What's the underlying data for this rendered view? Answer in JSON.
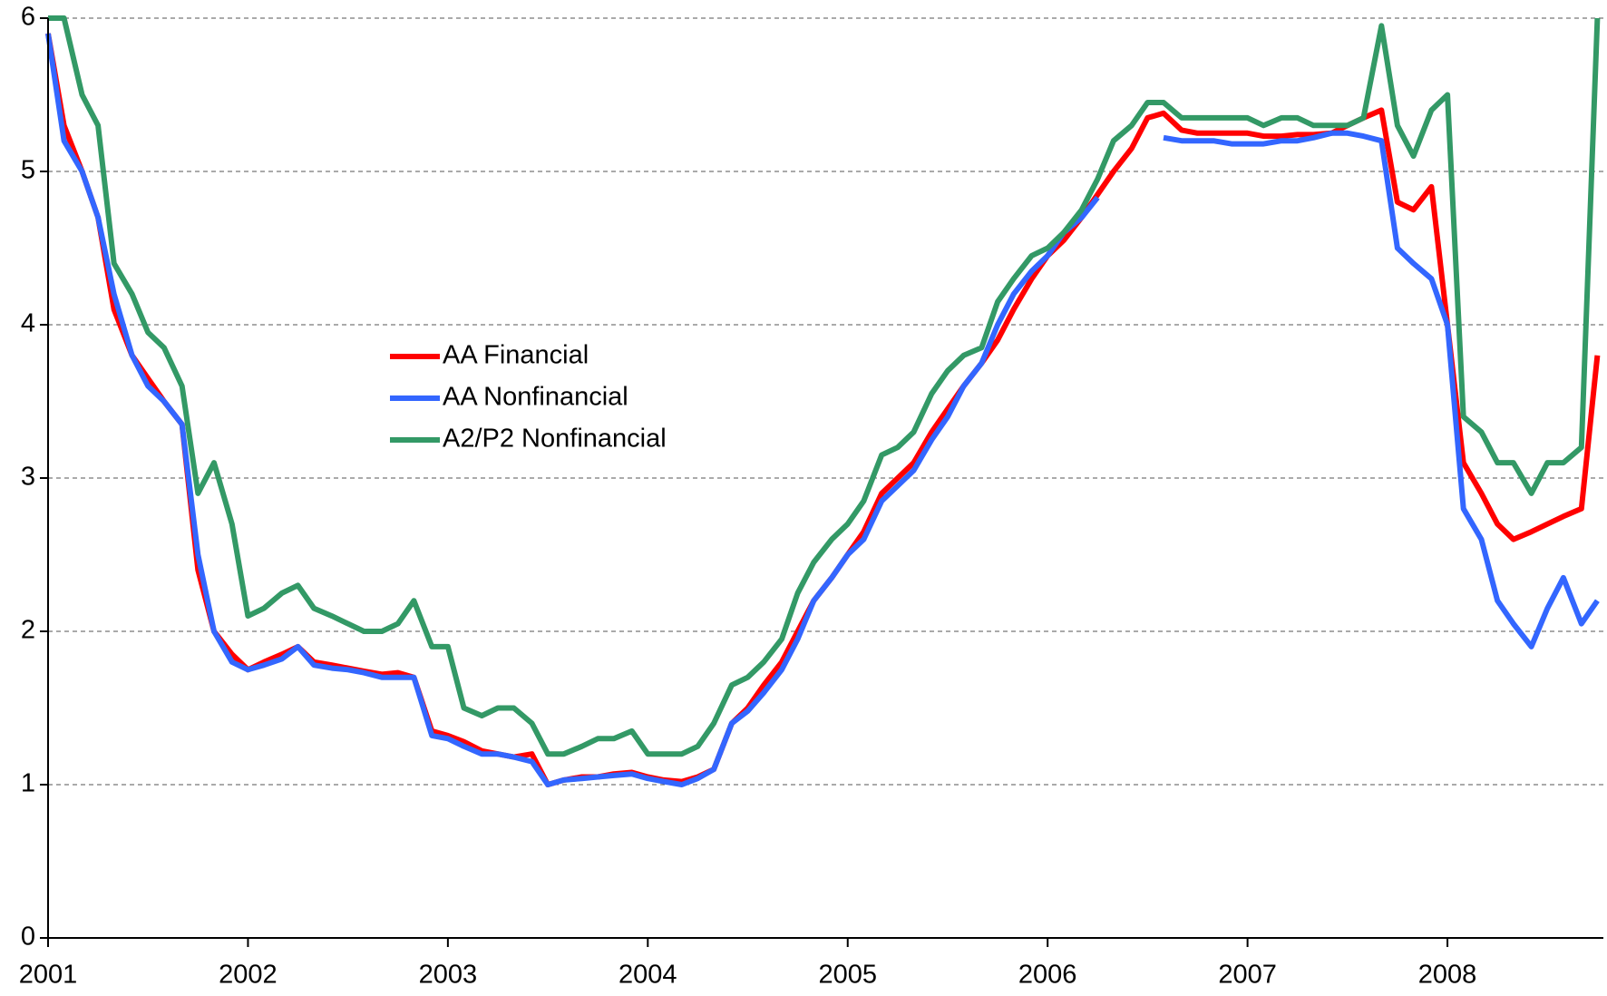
{
  "chart_data": {
    "type": "line",
    "x": [
      2001.0,
      2001.08,
      2001.17,
      2001.25,
      2001.33,
      2001.42,
      2001.5,
      2001.58,
      2001.67,
      2001.75,
      2001.83,
      2001.92,
      2002.0,
      2002.08,
      2002.17,
      2002.25,
      2002.33,
      2002.42,
      2002.5,
      2002.58,
      2002.67,
      2002.75,
      2002.83,
      2002.92,
      2003.0,
      2003.08,
      2003.17,
      2003.25,
      2003.33,
      2003.42,
      2003.5,
      2003.58,
      2003.67,
      2003.75,
      2003.83,
      2003.92,
      2004.0,
      2004.08,
      2004.17,
      2004.25,
      2004.33,
      2004.42,
      2004.5,
      2004.58,
      2004.67,
      2004.75,
      2004.83,
      2004.92,
      2005.0,
      2005.08,
      2005.17,
      2005.25,
      2005.33,
      2005.42,
      2005.5,
      2005.58,
      2005.67,
      2005.75,
      2005.83,
      2005.92,
      2006.0,
      2006.08,
      2006.17,
      2006.25,
      2006.33,
      2006.42,
      2006.5,
      2006.58,
      2006.67,
      2006.75,
      2006.83,
      2006.92,
      2007.0,
      2007.08,
      2007.17,
      2007.25,
      2007.33,
      2007.42,
      2007.5,
      2007.58,
      2007.67,
      2007.75,
      2007.83,
      2007.92,
      2008.0,
      2008.08,
      2008.17,
      2008.25,
      2008.33,
      2008.42,
      2008.5,
      2008.58,
      2008.67,
      2008.75
    ],
    "series": [
      {
        "name": "AA Financial",
        "color": "#ff0000",
        "values": [
          5.9,
          5.3,
          5.0,
          4.7,
          4.1,
          3.8,
          3.65,
          3.5,
          3.35,
          2.4,
          2.0,
          1.85,
          1.75,
          1.8,
          1.85,
          1.9,
          1.8,
          1.78,
          1.76,
          1.74,
          1.72,
          1.73,
          1.7,
          1.35,
          1.32,
          1.28,
          1.22,
          1.2,
          1.18,
          1.2,
          1.0,
          1.03,
          1.05,
          1.05,
          1.07,
          1.08,
          1.05,
          1.03,
          1.02,
          1.05,
          1.1,
          1.4,
          1.5,
          1.65,
          1.8,
          2.0,
          2.2,
          2.35,
          2.5,
          2.65,
          2.9,
          3.0,
          3.1,
          3.3,
          3.45,
          3.6,
          3.75,
          3.9,
          4.1,
          4.3,
          4.45,
          4.55,
          4.7,
          4.85,
          5.0,
          5.15,
          5.35,
          5.38,
          5.27,
          5.25,
          5.25,
          5.25,
          5.25,
          5.23,
          5.23,
          5.24,
          5.24,
          5.25,
          5.3,
          5.35,
          5.4,
          4.8,
          4.75,
          4.9,
          4.0,
          3.1,
          2.9,
          2.7,
          2.6,
          2.65,
          2.7,
          2.75,
          2.8,
          3.8
        ]
      },
      {
        "name": "AA Nonfinancial",
        "color": "#3366ff",
        "values": [
          5.9,
          5.2,
          5.0,
          4.7,
          4.2,
          3.8,
          3.6,
          3.5,
          3.35,
          2.5,
          2.0,
          1.8,
          1.75,
          1.78,
          1.82,
          1.9,
          1.78,
          1.76,
          1.75,
          1.73,
          1.7,
          1.7,
          1.7,
          1.32,
          1.3,
          1.25,
          1.2,
          1.2,
          1.18,
          1.15,
          1.0,
          1.03,
          1.04,
          1.05,
          1.06,
          1.07,
          1.04,
          1.02,
          1.0,
          1.04,
          1.1,
          1.4,
          1.48,
          1.6,
          1.75,
          1.95,
          2.2,
          2.35,
          2.5,
          2.6,
          2.85,
          2.95,
          3.05,
          3.25,
          3.4,
          3.6,
          3.75,
          4.0,
          4.2,
          4.35,
          4.45,
          4.6,
          4.7,
          4.83,
          null,
          null,
          null,
          5.22,
          5.2,
          5.2,
          5.2,
          5.18,
          5.18,
          5.18,
          5.2,
          5.2,
          5.22,
          5.25,
          5.25,
          5.23,
          5.2,
          4.5,
          4.4,
          4.3,
          4.0,
          2.8,
          2.6,
          2.2,
          2.05,
          1.9,
          2.15,
          2.35,
          2.05,
          2.2
        ]
      },
      {
        "name": "A2/P2 Nonfinancial",
        "color": "#339966",
        "values": [
          6.0,
          6.0,
          5.5,
          5.3,
          4.4,
          4.2,
          3.95,
          3.85,
          3.6,
          2.9,
          3.1,
          2.7,
          2.1,
          2.15,
          2.25,
          2.3,
          2.15,
          2.1,
          2.05,
          2.0,
          2.0,
          2.05,
          2.2,
          1.9,
          1.9,
          1.5,
          1.45,
          1.5,
          1.5,
          1.4,
          1.2,
          1.2,
          1.25,
          1.3,
          1.3,
          1.35,
          1.2,
          1.2,
          1.2,
          1.25,
          1.4,
          1.65,
          1.7,
          1.8,
          1.95,
          2.25,
          2.45,
          2.6,
          2.7,
          2.85,
          3.15,
          3.2,
          3.3,
          3.55,
          3.7,
          3.8,
          3.85,
          4.15,
          4.3,
          4.45,
          4.5,
          4.6,
          4.75,
          4.95,
          5.2,
          5.3,
          5.45,
          5.45,
          5.35,
          5.35,
          5.35,
          5.35,
          5.35,
          5.3,
          5.35,
          5.35,
          5.3,
          5.3,
          5.3,
          5.35,
          5.95,
          5.3,
          5.1,
          5.4,
          5.5,
          3.4,
          3.3,
          3.1,
          3.1,
          2.9,
          3.1,
          3.1,
          3.2,
          6.0
        ]
      }
    ],
    "xlim": [
      2001,
      2008.78
    ],
    "xticks": [
      2001,
      2002,
      2003,
      2004,
      2005,
      2006,
      2007,
      2008
    ],
    "ylim": [
      0,
      6
    ],
    "yticks": [
      0,
      1,
      2,
      3,
      4,
      5,
      6
    ],
    "grid": true
  }
}
